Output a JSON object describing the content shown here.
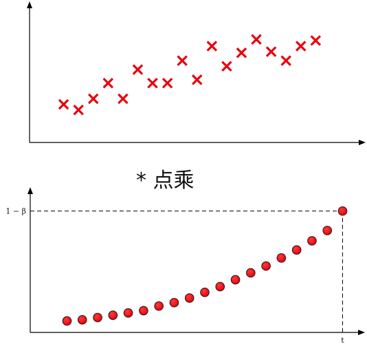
{
  "operator_label": "* 点乘",
  "chart_data": [
    {
      "type": "scatter",
      "marker": "x",
      "color": "#e8000b",
      "x": [
        1,
        2,
        3,
        4,
        5,
        6,
        7,
        8,
        9,
        10,
        11,
        12,
        13,
        14,
        15,
        16,
        17,
        18
      ],
      "y": [
        2.4,
        1.9,
        2.9,
        4.3,
        2.9,
        5.5,
        4.3,
        4.3,
        6.3,
        4.6,
        7.6,
        5.8,
        7.0,
        8.2,
        7.1,
        6.3,
        7.6,
        8.1
      ],
      "xlim": [
        -1.3,
        21.0
      ],
      "ylim": [
        -1.0,
        11.1
      ],
      "grid": false
    },
    {
      "type": "scatter",
      "marker": "circle",
      "color": "#e8000b",
      "x": [
        1,
        2,
        3,
        4,
        5,
        6,
        7,
        8,
        9,
        10,
        11,
        12,
        13,
        14,
        15,
        16,
        17,
        18,
        19
      ],
      "y": [
        0.04,
        0.05,
        0.07,
        0.09,
        0.11,
        0.13,
        0.17,
        0.2,
        0.24,
        0.29,
        0.34,
        0.4,
        0.46,
        0.52,
        0.59,
        0.66,
        0.74,
        0.83,
        1.0
      ],
      "ylabel_tick": "1 − β",
      "xlabel_tick": "t",
      "xlim": [
        -1.4,
        20.1
      ],
      "ylim": [
        -0.06,
        1.16
      ],
      "grid": false
    }
  ]
}
